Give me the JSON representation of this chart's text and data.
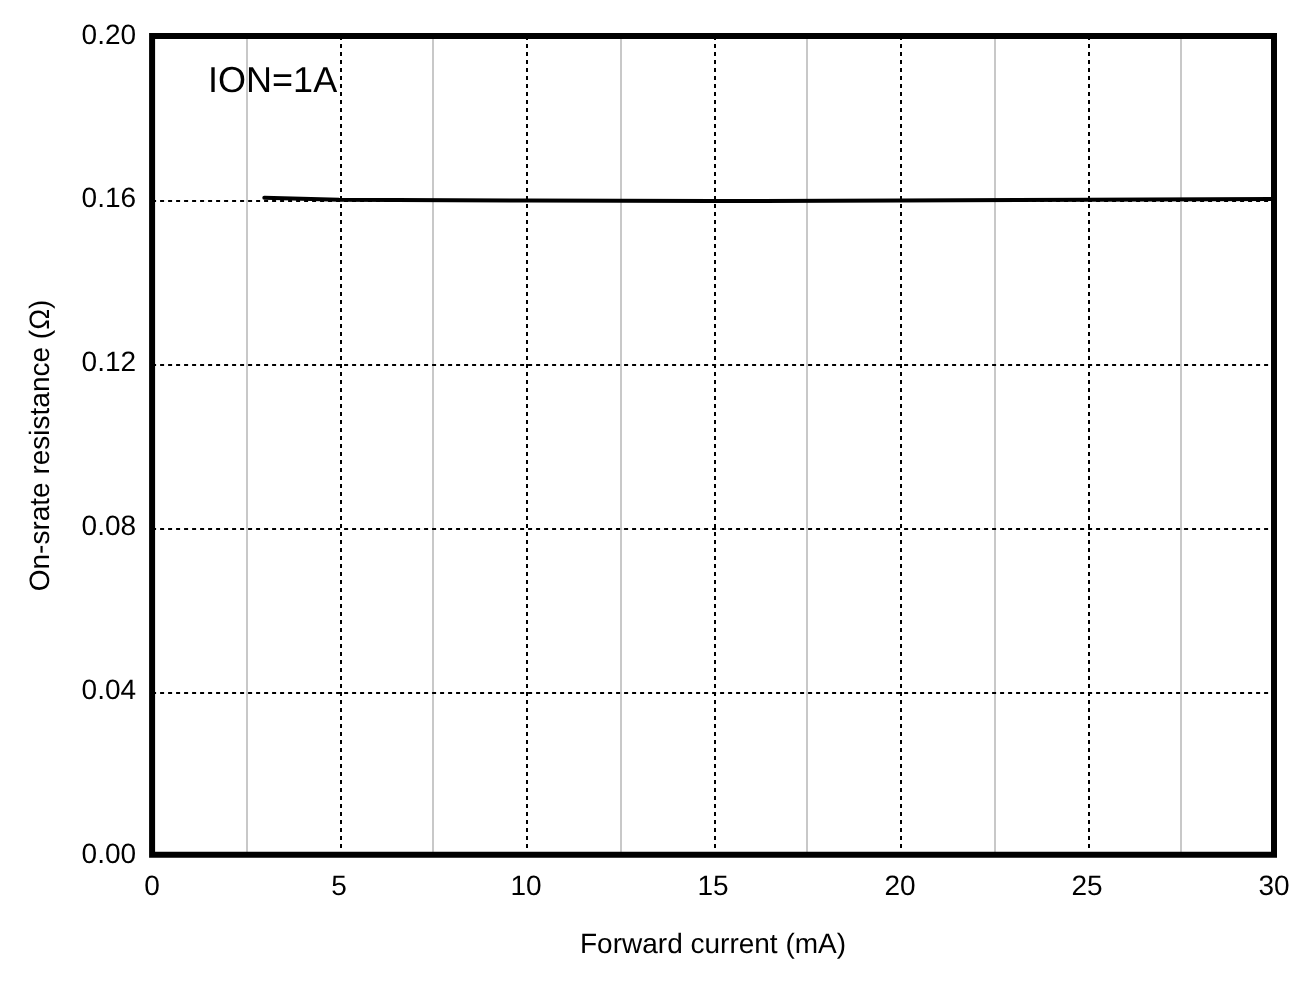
{
  "chart_data": {
    "type": "line",
    "xlabel": "Forward current (mA)",
    "ylabel": "On-srate resistance (Ω)",
    "annotations": [
      "ION=1A"
    ],
    "x": [
      3,
      5,
      10,
      15,
      20,
      25,
      30
    ],
    "series": [
      {
        "color": "#000000",
        "values": [
          0.1605,
          0.16,
          0.1598,
          0.1597,
          0.1598,
          0.16,
          0.1602
        ]
      }
    ],
    "xlim": [
      0,
      30
    ],
    "ylim": [
      0,
      0.2
    ],
    "xticks": [
      0,
      {
        "value": 2.5,
        "label": null
      },
      5,
      {
        "value": 7.5,
        "label": null
      },
      10,
      {
        "value": 12.5,
        "label": null
      },
      15,
      {
        "value": 17.5,
        "label": null
      },
      20,
      {
        "value": 22.5,
        "label": null
      },
      25,
      {
        "value": 27.5,
        "label": null
      },
      30
    ],
    "yticks": [
      {
        "value": 0,
        "label": "0.00"
      },
      {
        "value": 0.04,
        "label": "0.04"
      },
      {
        "value": 0.08,
        "label": "0.08"
      },
      {
        "value": 0.12,
        "label": "0.12"
      },
      {
        "value": 0.16,
        "label": "0.16"
      },
      {
        "value": 0.2,
        "label": "0.20"
      }
    ],
    "grid": true,
    "legend": false,
    "marker": "none",
    "line_style": "solid"
  }
}
